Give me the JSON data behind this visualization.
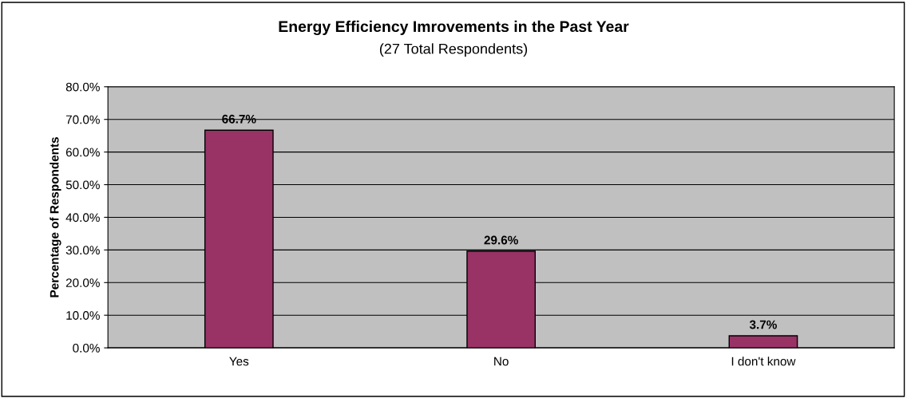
{
  "chart_data": {
    "type": "bar",
    "title": "Energy Efficiency Imrovements in the Past Year",
    "subtitle": "(27 Total Respondents)",
    "ylabel": "Percentage of Respondents",
    "categories": [
      "Yes",
      "No",
      "I don't know"
    ],
    "values": [
      66.7,
      29.6,
      3.7
    ],
    "color": "#993366",
    "value_labels": [
      "66.7%",
      "29.6%",
      "3.7%"
    ],
    "ylim": [
      0,
      80
    ],
    "yticks": [
      {
        "value": 0,
        "label": "0.0%"
      },
      {
        "value": 10,
        "label": "10.0%"
      },
      {
        "value": 20,
        "label": "20.0%"
      },
      {
        "value": 30,
        "label": "30.0%"
      },
      {
        "value": 40,
        "label": "40.0%"
      },
      {
        "value": 50,
        "label": "50.0%"
      },
      {
        "value": 60,
        "label": "60.0%"
      },
      {
        "value": 70,
        "label": "70.0%"
      },
      {
        "value": 80,
        "label": "80.0%"
      }
    ],
    "grid": "y",
    "legend": false
  }
}
